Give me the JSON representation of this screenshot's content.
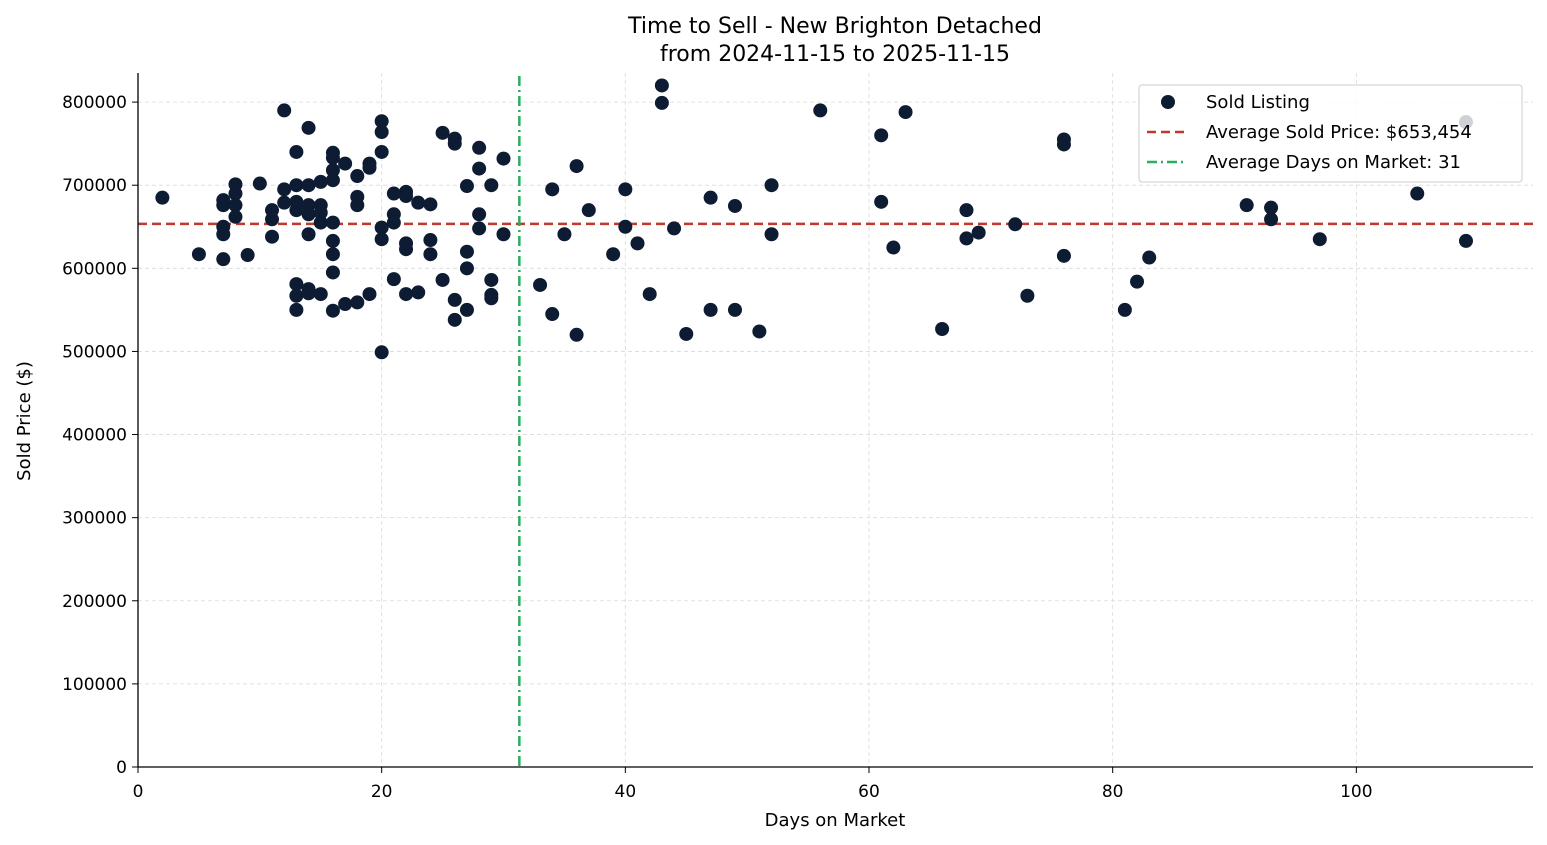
{
  "chart_data": {
    "type": "scatter",
    "title": "Time to Sell - New Brighton Detached",
    "subtitle": "from 2024-11-15 to 2025-11-15",
    "xlabel": "Days on Market",
    "ylabel": "Sold Price ($)",
    "xlim": [
      0,
      114.5
    ],
    "ylim": [
      0,
      835000
    ],
    "xticks": [
      0,
      20,
      40,
      60,
      80,
      100
    ],
    "yticks": [
      0,
      100000,
      200000,
      300000,
      400000,
      500000,
      600000,
      700000,
      800000
    ],
    "grid": true,
    "legend_position": "top-right",
    "colors": {
      "points": "#0d1b33",
      "avg_price_line": "#c0392b",
      "avg_days_line": "#27ae60",
      "grid": "#d9d9d9"
    },
    "average_price": 653454,
    "average_days": 31.3,
    "legend": {
      "points": "Sold Listing",
      "avg_price": "Average Sold Price: $653,454",
      "avg_days": "Average Days on Market: 31"
    },
    "points": [
      [
        2,
        685000
      ],
      [
        5,
        617000
      ],
      [
        7,
        682000
      ],
      [
        7,
        676000
      ],
      [
        7,
        650000
      ],
      [
        7,
        641000
      ],
      [
        7,
        611000
      ],
      [
        8,
        701000
      ],
      [
        8,
        690000
      ],
      [
        8,
        676000
      ],
      [
        8,
        662000
      ],
      [
        9,
        616000
      ],
      [
        10,
        702000
      ],
      [
        11,
        670000
      ],
      [
        11,
        659000
      ],
      [
        11,
        638000
      ],
      [
        12,
        790000
      ],
      [
        12,
        695000
      ],
      [
        12,
        679000
      ],
      [
        13,
        740000
      ],
      [
        13,
        700000
      ],
      [
        13,
        680000
      ],
      [
        13,
        670000
      ],
      [
        13,
        581000
      ],
      [
        13,
        567000
      ],
      [
        13,
        550000
      ],
      [
        14,
        769000
      ],
      [
        14,
        700000
      ],
      [
        14,
        676000
      ],
      [
        14,
        665000
      ],
      [
        14,
        641000
      ],
      [
        14,
        575000
      ],
      [
        14,
        570000
      ],
      [
        15,
        704000
      ],
      [
        15,
        676000
      ],
      [
        15,
        667000
      ],
      [
        15,
        655000
      ],
      [
        15,
        569000
      ],
      [
        16,
        739000
      ],
      [
        16,
        733000
      ],
      [
        16,
        718000
      ],
      [
        16,
        706000
      ],
      [
        16,
        655000
      ],
      [
        16,
        617000
      ],
      [
        16,
        633000
      ],
      [
        16,
        595000
      ],
      [
        16,
        549000
      ],
      [
        17,
        726000
      ],
      [
        17,
        557000
      ],
      [
        18,
        711000
      ],
      [
        18,
        686000
      ],
      [
        18,
        676000
      ],
      [
        18,
        559000
      ],
      [
        19,
        726000
      ],
      [
        19,
        721000
      ],
      [
        19,
        569000
      ],
      [
        20,
        777000
      ],
      [
        20,
        764000
      ],
      [
        20,
        740000
      ],
      [
        20,
        649000
      ],
      [
        20,
        635000
      ],
      [
        20,
        499000
      ],
      [
        21,
        690000
      ],
      [
        21,
        665000
      ],
      [
        21,
        655000
      ],
      [
        21,
        587000
      ],
      [
        22,
        692000
      ],
      [
        22,
        687000
      ],
      [
        22,
        630000
      ],
      [
        22,
        623000
      ],
      [
        22,
        569000
      ],
      [
        23,
        679000
      ],
      [
        23,
        571000
      ],
      [
        24,
        677000
      ],
      [
        24,
        634000
      ],
      [
        24,
        617000
      ],
      [
        25,
        763000
      ],
      [
        25,
        586000
      ],
      [
        26,
        756000
      ],
      [
        26,
        750000
      ],
      [
        26,
        562000
      ],
      [
        26,
        538000
      ],
      [
        27,
        699000
      ],
      [
        27,
        620000
      ],
      [
        27,
        600000
      ],
      [
        27,
        550000
      ],
      [
        28,
        745000
      ],
      [
        28,
        720000
      ],
      [
        28,
        665000
      ],
      [
        28,
        648000
      ],
      [
        29,
        700000
      ],
      [
        29,
        586000
      ],
      [
        29,
        568000
      ],
      [
        29,
        564000
      ],
      [
        30,
        732000
      ],
      [
        30,
        641000
      ],
      [
        33,
        580000
      ],
      [
        34,
        695000
      ],
      [
        34,
        545000
      ],
      [
        35,
        641000
      ],
      [
        36,
        723000
      ],
      [
        36,
        520000
      ],
      [
        37,
        670000
      ],
      [
        39,
        617000
      ],
      [
        40,
        695000
      ],
      [
        40,
        650000
      ],
      [
        41,
        630000
      ],
      [
        42,
        569000
      ],
      [
        43,
        820000
      ],
      [
        43,
        799000
      ],
      [
        44,
        648000
      ],
      [
        45,
        521000
      ],
      [
        47,
        685000
      ],
      [
        47,
        550000
      ],
      [
        49,
        675000
      ],
      [
        49,
        550000
      ],
      [
        51,
        524000
      ],
      [
        52,
        700000
      ],
      [
        52,
        641000
      ],
      [
        56,
        790000
      ],
      [
        61,
        760000
      ],
      [
        61,
        680000
      ],
      [
        62,
        625000
      ],
      [
        63,
        788000
      ],
      [
        66,
        527000
      ],
      [
        68,
        670000
      ],
      [
        68,
        636000
      ],
      [
        69,
        643000
      ],
      [
        72,
        653000
      ],
      [
        73,
        567000
      ],
      [
        76,
        755000
      ],
      [
        76,
        749000
      ],
      [
        76,
        615000
      ],
      [
        81,
        550000
      ],
      [
        82,
        584000
      ],
      [
        83,
        613000
      ],
      [
        91,
        676000
      ],
      [
        93,
        673000
      ],
      [
        93,
        659000
      ],
      [
        97,
        635000
      ],
      [
        105,
        690000
      ],
      [
        109,
        776000
      ],
      [
        109,
        633000
      ]
    ]
  }
}
